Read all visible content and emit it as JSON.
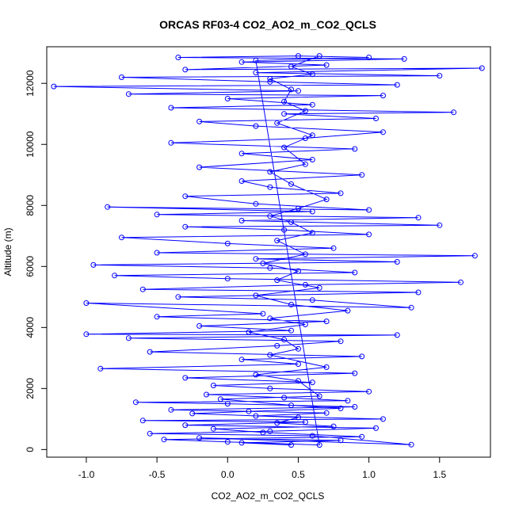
{
  "chart_data": {
    "type": "line",
    "title": "ORCAS RF03-4 CO2_AO2_m_CO2_QCLS",
    "xlabel": "CO2_AO2_m_CO2_QCLS",
    "ylabel": "Altitude (m)",
    "xlim": [
      -1.28,
      1.86
    ],
    "ylim": [
      -250,
      13200
    ],
    "xticks": [
      -1.0,
      -0.5,
      0.0,
      0.5,
      1.0,
      1.5
    ],
    "xtick_labels": [
      "-1.0",
      "-0.5",
      "0.0",
      "0.5",
      "1.0",
      "1.5"
    ],
    "yticks": [
      0,
      2000,
      4000,
      6000,
      8000,
      10000,
      12000
    ],
    "ytick_labels": [
      "0",
      "2000",
      "4000",
      "6000",
      "8000",
      "10000",
      "12000"
    ],
    "grid": false,
    "series": [
      {
        "color": "#0000ff",
        "marker": "open-circle",
        "line": true,
        "points": [
          [
            0.45,
            150
          ],
          [
            0.1,
            220
          ],
          [
            0.8,
            300
          ],
          [
            -0.2,
            380
          ],
          [
            1.3,
            160
          ],
          [
            0.6,
            450
          ],
          [
            -0.55,
            520
          ],
          [
            0.3,
            600
          ],
          [
            1.05,
            700
          ],
          [
            -0.3,
            800
          ],
          [
            0.55,
            900
          ],
          [
            -0.6,
            950
          ],
          [
            1.1,
            1000
          ],
          [
            0.2,
            1100
          ],
          [
            0.7,
            1200
          ],
          [
            -0.4,
            1300
          ],
          [
            0.9,
            1400
          ],
          [
            0.0,
            1500
          ],
          [
            -0.65,
            1550
          ],
          [
            0.85,
            1600
          ],
          [
            0.4,
            1700
          ],
          [
            -0.15,
            1800
          ],
          [
            1.0,
            1900
          ],
          [
            0.3,
            2000
          ],
          [
            -0.1,
            2100
          ],
          [
            0.6,
            2200
          ],
          [
            -0.3,
            2350
          ],
          [
            0.9,
            2500
          ],
          [
            -0.9,
            2650
          ],
          [
            0.5,
            2800
          ],
          [
            0.1,
            2950
          ],
          [
            0.95,
            3050
          ],
          [
            -0.55,
            3200
          ],
          [
            0.35,
            3400
          ],
          [
            0.8,
            3550
          ],
          [
            -0.7,
            3650
          ],
          [
            1.2,
            3750
          ],
          [
            -1.0,
            3780
          ],
          [
            0.45,
            3900
          ],
          [
            -0.2,
            4050
          ],
          [
            0.7,
            4200
          ],
          [
            -0.5,
            4350
          ],
          [
            0.25,
            4450
          ],
          [
            -1.0,
            4800
          ],
          [
            1.3,
            4650
          ],
          [
            0.6,
            4900
          ],
          [
            -0.35,
            5000
          ],
          [
            1.35,
            5150
          ],
          [
            -0.6,
            5250
          ],
          [
            0.55,
            5400
          ],
          [
            1.65,
            5480
          ],
          [
            0.0,
            5600
          ],
          [
            -0.8,
            5700
          ],
          [
            0.9,
            5800
          ],
          [
            0.3,
            5950
          ],
          [
            -0.95,
            6050
          ],
          [
            1.2,
            6150
          ],
          [
            0.2,
            6250
          ],
          [
            1.75,
            6350
          ],
          [
            -0.5,
            6450
          ],
          [
            0.75,
            6600
          ],
          [
            0.0,
            6750
          ],
          [
            -0.75,
            6950
          ],
          [
            1.0,
            7050
          ],
          [
            0.4,
            7200
          ],
          [
            -0.3,
            7300
          ],
          [
            1.5,
            7350
          ],
          [
            0.1,
            7500
          ],
          [
            1.35,
            7600
          ],
          [
            -0.5,
            7700
          ],
          [
            0.6,
            7800
          ],
          [
            -0.85,
            7950
          ],
          [
            1.0,
            7850
          ],
          [
            0.2,
            8050
          ],
          [
            -0.3,
            8300
          ],
          [
            0.8,
            8400
          ],
          [
            0.3,
            8600
          ],
          [
            0.1,
            8800
          ],
          [
            0.95,
            9000
          ],
          [
            -0.2,
            9250
          ],
          [
            0.6,
            9500
          ],
          [
            0.1,
            9700
          ],
          [
            0.9,
            9850
          ],
          [
            -0.4,
            10050
          ],
          [
            0.55,
            10200
          ],
          [
            1.1,
            10400
          ],
          [
            0.2,
            10600
          ],
          [
            -0.2,
            10750
          ],
          [
            1.05,
            10850
          ],
          [
            0.4,
            11000
          ],
          [
            1.6,
            11050
          ],
          [
            -0.4,
            11200
          ],
          [
            0.6,
            11300
          ],
          [
            0.0,
            11500
          ],
          [
            1.1,
            11600
          ],
          [
            -0.7,
            11650
          ],
          [
            0.5,
            11750
          ],
          [
            -1.23,
            11900
          ],
          [
            1.2,
            11950
          ],
          [
            0.3,
            12050
          ],
          [
            -0.75,
            12200
          ],
          [
            1.5,
            12250
          ],
          [
            0.2,
            12350
          ],
          [
            1.8,
            12500
          ],
          [
            -0.3,
            12450
          ],
          [
            0.7,
            12600
          ],
          [
            0.1,
            12700
          ],
          [
            1.25,
            12800
          ],
          [
            -0.35,
            12850
          ],
          [
            0.5,
            12900
          ],
          [
            1.0,
            12850
          ],
          [
            0.2,
            12750
          ],
          [
            0.65,
            150
          ],
          [
            0.0,
            250
          ],
          [
            -0.45,
            330
          ],
          [
            0.95,
            420
          ],
          [
            0.25,
            560
          ],
          [
            -0.1,
            680
          ],
          [
            0.75,
            760
          ],
          [
            0.35,
            870
          ],
          [
            0.5,
            1050
          ],
          [
            -0.25,
            1180
          ],
          [
            0.15,
            1250
          ],
          [
            0.8,
            1350
          ],
          [
            0.45,
            1450
          ],
          [
            -0.05,
            1650
          ],
          [
            0.65,
            1750
          ],
          [
            0.5,
            2250
          ],
          [
            0.2,
            2450
          ],
          [
            0.7,
            2700
          ],
          [
            0.3,
            3100
          ],
          [
            0.5,
            3300
          ],
          [
            0.4,
            3600
          ],
          [
            0.15,
            3850
          ],
          [
            0.55,
            4100
          ],
          [
            0.3,
            4300
          ],
          [
            0.85,
            4550
          ],
          [
            0.45,
            4750
          ],
          [
            0.2,
            5050
          ],
          [
            0.65,
            5300
          ],
          [
            0.35,
            5550
          ],
          [
            0.5,
            5850
          ],
          [
            0.25,
            6100
          ],
          [
            0.55,
            6400
          ],
          [
            0.35,
            6850
          ],
          [
            0.6,
            7100
          ],
          [
            0.45,
            7450
          ],
          [
            0.3,
            7650
          ],
          [
            0.5,
            7900
          ],
          [
            0.7,
            8200
          ],
          [
            0.45,
            8700
          ],
          [
            0.3,
            9100
          ],
          [
            0.55,
            9350
          ],
          [
            0.4,
            9900
          ],
          [
            0.6,
            10300
          ],
          [
            0.35,
            10700
          ],
          [
            0.55,
            11100
          ],
          [
            0.4,
            11400
          ],
          [
            0.45,
            11800
          ],
          [
            0.3,
            12150
          ],
          [
            0.6,
            12300
          ],
          [
            0.45,
            12550
          ],
          [
            0.65,
            12900
          ]
        ]
      }
    ]
  }
}
